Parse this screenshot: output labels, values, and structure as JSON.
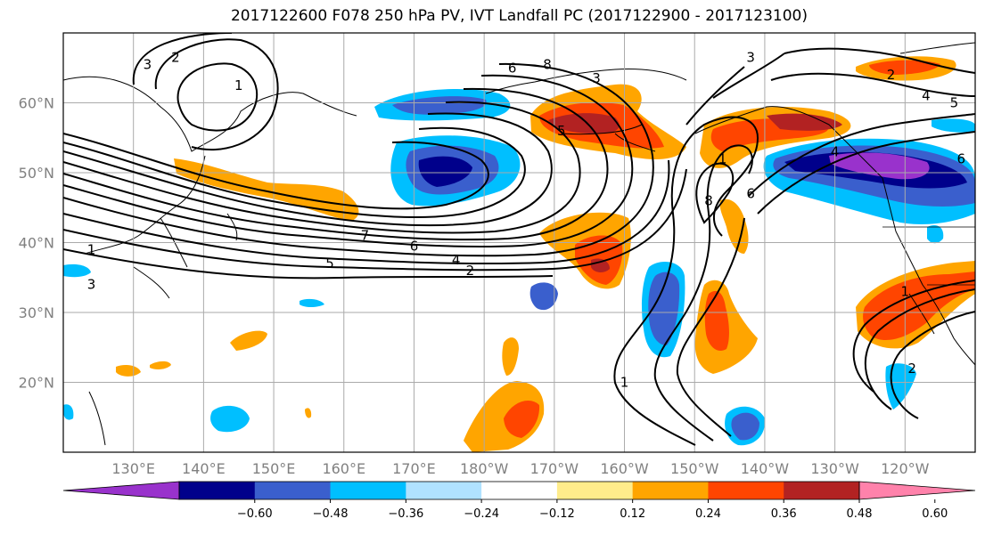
{
  "title": "2017122600 F078 250 hPa PV, IVT Landfall PC (2017122900 - 2017123100)",
  "chart_data": {
    "type": "map",
    "lon_range": [
      120,
      250
    ],
    "lat_range": [
      10,
      70
    ],
    "lat_ticks": [
      {
        "value": 20,
        "label": "20°N"
      },
      {
        "value": 30,
        "label": "30°N"
      },
      {
        "value": 40,
        "label": "40°N"
      },
      {
        "value": 50,
        "label": "50°N"
      },
      {
        "value": 60,
        "label": "60°N"
      }
    ],
    "lon_ticks": [
      {
        "value": 130,
        "label": "130°E"
      },
      {
        "value": 140,
        "label": "140°E"
      },
      {
        "value": 150,
        "label": "150°E"
      },
      {
        "value": 160,
        "label": "160°E"
      },
      {
        "value": 170,
        "label": "170°E"
      },
      {
        "value": 180,
        "label": "180°W"
      },
      {
        "value": 190,
        "label": "170°W"
      },
      {
        "value": 200,
        "label": "160°W"
      },
      {
        "value": 210,
        "label": "150°W"
      },
      {
        "value": 220,
        "label": "140°W"
      },
      {
        "value": 230,
        "label": "130°W"
      },
      {
        "value": 240,
        "label": "120°W"
      }
    ],
    "grid": true,
    "colorbar": {
      "levels": [
        -0.6,
        -0.48,
        -0.36,
        -0.24,
        -0.12,
        0.12,
        0.24,
        0.36,
        0.48,
        0.6
      ],
      "tick_labels": [
        "−0.60",
        "−0.48",
        "−0.36",
        "−0.24",
        "−0.12",
        "0.12",
        "0.24",
        "0.36",
        "0.48",
        "0.60"
      ],
      "colors": [
        "#9932cc",
        "#00008b",
        "#3a5fcd",
        "#00bfff",
        "#b0e2ff",
        "#ffffff",
        "#ffec8b",
        "#ffa500",
        "#ff4500",
        "#b22222",
        "#ff82ab"
      ]
    },
    "contour_labels": [
      {
        "lon": 132,
        "lat": 65.5,
        "text": "3"
      },
      {
        "lon": 136,
        "lat": 66.5,
        "text": "2"
      },
      {
        "lon": 145,
        "lat": 62.5,
        "text": "1"
      },
      {
        "lon": 163,
        "lat": 41,
        "text": "7"
      },
      {
        "lon": 170,
        "lat": 39.5,
        "text": "6"
      },
      {
        "lon": 176,
        "lat": 37.5,
        "text": "4"
      },
      {
        "lon": 158,
        "lat": 37,
        "text": "5"
      },
      {
        "lon": 178,
        "lat": 36,
        "text": "2"
      },
      {
        "lon": 184,
        "lat": 65,
        "text": "6"
      },
      {
        "lon": 189,
        "lat": 65.5,
        "text": "8"
      },
      {
        "lon": 191,
        "lat": 56,
        "text": "5"
      },
      {
        "lon": 196,
        "lat": 63.5,
        "text": "3"
      },
      {
        "lon": 214,
        "lat": 52,
        "text": "1"
      },
      {
        "lon": 218,
        "lat": 66.5,
        "text": "3"
      },
      {
        "lon": 212,
        "lat": 46,
        "text": "8"
      },
      {
        "lon": 218,
        "lat": 47,
        "text": "6"
      },
      {
        "lon": 230,
        "lat": 53,
        "text": "4"
      },
      {
        "lon": 238,
        "lat": 64,
        "text": "2"
      },
      {
        "lon": 243,
        "lat": 61,
        "text": "4"
      },
      {
        "lon": 247,
        "lat": 60,
        "text": "5"
      },
      {
        "lon": 248,
        "lat": 52,
        "text": "6"
      },
      {
        "lon": 124,
        "lat": 39,
        "text": "1"
      },
      {
        "lon": 124,
        "lat": 34,
        "text": "3"
      },
      {
        "lon": 200,
        "lat": 20,
        "text": "1"
      },
      {
        "lon": 240,
        "lat": 33,
        "text": "1"
      },
      {
        "lon": 241,
        "lat": 22,
        "text": "2"
      }
    ]
  }
}
